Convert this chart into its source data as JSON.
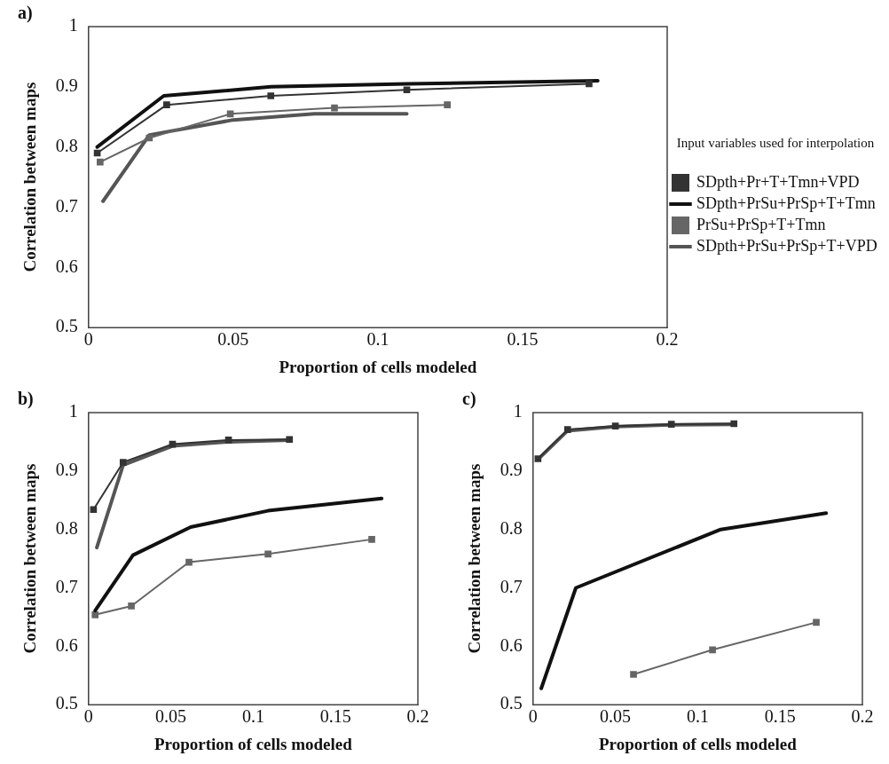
{
  "chart_data": [
    {
      "type": "line",
      "title": "a)",
      "xlabel": "Proportion of cells modeled",
      "ylabel": "Correlation between maps",
      "xlim": [
        0,
        0.2
      ],
      "xticks": [
        0,
        0.05,
        0.1,
        0.15,
        0.2
      ],
      "ylim": [
        0.5,
        1
      ],
      "yticks": [
        0.5,
        0.6,
        0.7,
        0.8,
        0.9,
        1
      ],
      "legend": "right",
      "legend_title": "Input variables used for interpolation",
      "series": [
        {
          "name": "SDpth+Pr+T+Tmn+VPD",
          "color": "#333333",
          "marker": "square",
          "x": [
            0.003,
            0.027,
            0.063,
            0.11,
            0.173
          ],
          "values": [
            0.79,
            0.87,
            0.885,
            0.895,
            0.905
          ]
        },
        {
          "name": "SDpth+PrSu+PrSp+T+Tmn",
          "color": "#111111",
          "marker": "none",
          "x": [
            0.003,
            0.026,
            0.063,
            0.11,
            0.176
          ],
          "values": [
            0.8,
            0.885,
            0.9,
            0.905,
            0.91
          ]
        },
        {
          "name": "PrSu+PrSp+T+Tmn",
          "color": "#666666",
          "marker": "square",
          "x": [
            0.004,
            0.021,
            0.049,
            0.085,
            0.124
          ],
          "values": [
            0.775,
            0.815,
            0.855,
            0.865,
            0.87
          ]
        },
        {
          "name": "SDpth+PrSu+PrSp+T+VPD",
          "color": "#555555",
          "marker": "none",
          "x": [
            0.005,
            0.021,
            0.05,
            0.078,
            0.11
          ],
          "values": [
            0.71,
            0.82,
            0.845,
            0.855,
            0.855
          ]
        }
      ]
    },
    {
      "type": "line",
      "title": "b)",
      "xlabel": "Proportion of cells modeled",
      "ylabel": "Correlation between maps",
      "xlim": [
        0,
        0.2
      ],
      "xticks": [
        0,
        0.05,
        0.1,
        0.15,
        0.2
      ],
      "ylim": [
        0.5,
        1
      ],
      "yticks": [
        0.5,
        0.6,
        0.7,
        0.8,
        0.9,
        1
      ],
      "series": [
        {
          "color": "#333333",
          "marker": "square",
          "x": [
            0.003,
            0.021,
            0.051,
            0.085,
            0.122
          ],
          "values": [
            0.834,
            0.915,
            0.946,
            0.953,
            0.954
          ]
        },
        {
          "color": "#111111",
          "marker": "none",
          "x": [
            0.004,
            0.027,
            0.062,
            0.109,
            0.178
          ],
          "values": [
            0.661,
            0.756,
            0.804,
            0.832,
            0.853
          ]
        },
        {
          "color": "#666666",
          "marker": "square",
          "x": [
            0.004,
            0.026,
            0.061,
            0.109,
            0.172
          ],
          "values": [
            0.654,
            0.669,
            0.744,
            0.758,
            0.783
          ]
        },
        {
          "color": "#555555",
          "marker": "none",
          "x": [
            0.005,
            0.021,
            0.051,
            0.085,
            0.122
          ],
          "values": [
            0.769,
            0.91,
            0.943,
            0.95,
            0.953
          ]
        }
      ]
    },
    {
      "type": "line",
      "title": "c)",
      "xlabel": "Proportion of cells modeled",
      "ylabel": "Correlation between maps",
      "xlim": [
        0,
        0.2
      ],
      "xticks": [
        0,
        0.05,
        0.1,
        0.15,
        0.2
      ],
      "ylim": [
        0.5,
        1
      ],
      "yticks": [
        0.5,
        0.6,
        0.7,
        0.8,
        0.9,
        1
      ],
      "series": [
        {
          "color": "#333333",
          "marker": "square",
          "x": [
            0.003,
            0.021,
            0.05,
            0.084,
            0.122
          ],
          "values": [
            0.921,
            0.971,
            0.977,
            0.98,
            0.981
          ]
        },
        {
          "color": "#111111",
          "marker": "none",
          "x": [
            0.005,
            0.026,
            0.114,
            0.178
          ],
          "values": [
            0.528,
            0.7,
            0.8,
            0.828
          ]
        },
        {
          "color": "#666666",
          "marker": "square",
          "x": [
            0.061,
            0.109,
            0.172
          ],
          "values": [
            0.552,
            0.594,
            0.641
          ]
        },
        {
          "color": "#555555",
          "marker": "none",
          "x": [
            0.003,
            0.021,
            0.05,
            0.084,
            0.122
          ],
          "values": [
            0.92,
            0.969,
            0.976,
            0.979,
            0.98
          ]
        }
      ]
    }
  ]
}
